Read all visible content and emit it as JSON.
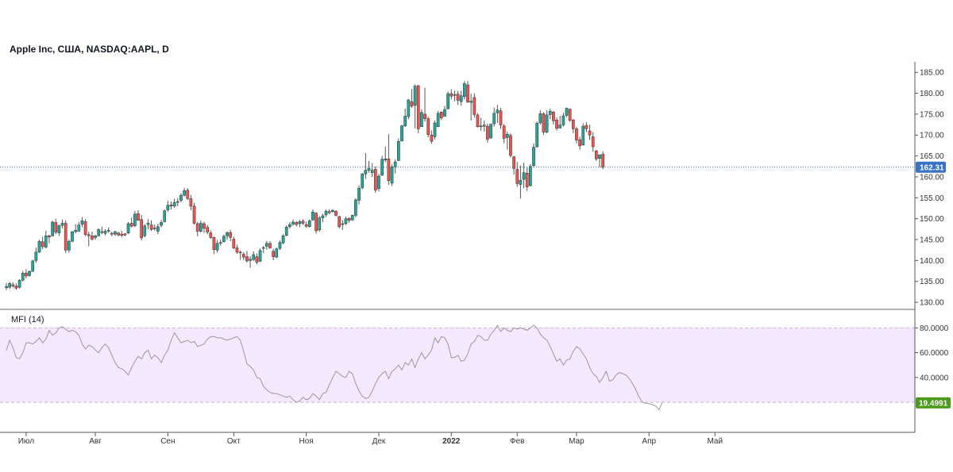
{
  "header": {
    "title": "Apple Inc, США, NASDAQ:AAPL, D"
  },
  "mfi": {
    "title": "MFI (14)",
    "last_value_label": "19.4991"
  },
  "colors": {
    "up": "#26a69a",
    "down": "#ef5350",
    "wick": "#555555",
    "price_line": "#2d6b8a",
    "price_badge": "#3b73c4",
    "mfi_line": "#999999",
    "mfi_band": "#f3e8fd",
    "mfi_band_border": "#c9b4d4",
    "mfi_badge": "#4a9a1c"
  },
  "chart_data": [
    {
      "type": "candlestick",
      "title": "Apple Inc, США, NASDAQ:AAPL, D",
      "x_labels": [
        "Июл",
        "Авг",
        "Сен",
        "Окт",
        "Ноя",
        "Дек",
        "2022",
        "Фев",
        "Мар",
        "Апр",
        "Май"
      ],
      "y_ticks": [
        "130.00",
        "135.00",
        "140.00",
        "145.00",
        "150.00",
        "155.00",
        "160.00",
        "165.00",
        "170.00",
        "175.00",
        "180.00",
        "185.00"
      ],
      "ylim": [
        128.5,
        187.5
      ],
      "last_price": 162.31,
      "last_price_label": "162.31",
      "grid": false,
      "candles": [
        [
          133.5,
          134.6,
          132.9,
          133.8
        ],
        [
          133.6,
          134.9,
          133.2,
          134.5
        ],
        [
          134.2,
          134.8,
          133.5,
          133.9
        ],
        [
          133.9,
          134.5,
          133.0,
          133.4
        ],
        [
          133.6,
          135.5,
          133.3,
          135.3
        ],
        [
          135.3,
          137.5,
          135.0,
          137.0
        ],
        [
          137.0,
          137.9,
          135.7,
          136.3
        ],
        [
          136.4,
          137.6,
          136.1,
          137.4
        ],
        [
          137.4,
          140.2,
          137.3,
          139.9
        ],
        [
          140.0,
          143.1,
          139.4,
          142.0
        ],
        [
          142.0,
          144.9,
          141.8,
          144.6
        ],
        [
          144.5,
          145.7,
          142.7,
          143.3
        ],
        [
          143.2,
          147.1,
          142.9,
          145.9
        ],
        [
          145.9,
          146.2,
          144.1,
          145.6
        ],
        [
          145.9,
          149.5,
          145.7,
          149.2
        ],
        [
          149.1,
          150.0,
          146.3,
          146.8
        ],
        [
          146.6,
          148.5,
          145.9,
          148.4
        ],
        [
          148.4,
          149.8,
          147.7,
          148.9
        ],
        [
          148.9,
          149.6,
          141.8,
          142.5
        ],
        [
          142.5,
          145.0,
          141.9,
          144.6
        ],
        [
          144.6,
          147.0,
          144.4,
          146.9
        ],
        [
          146.9,
          148.7,
          146.5,
          147.2
        ],
        [
          147.0,
          149.2,
          146.8,
          148.5
        ],
        [
          148.7,
          150.4,
          148.0,
          149.5
        ],
        [
          149.3,
          149.9,
          145.8,
          146.2
        ],
        [
          146.2,
          146.9,
          143.4,
          145.9
        ],
        [
          145.9,
          146.9,
          144.8,
          145.1
        ],
        [
          145.5,
          146.1,
          145.0,
          145.9
        ],
        [
          145.9,
          147.7,
          145.8,
          147.4
        ],
        [
          146.9,
          148.1,
          146.3,
          146.7
        ],
        [
          146.5,
          147.5,
          146.0,
          147.0
        ],
        [
          147.1,
          147.9,
          146.6,
          147.2
        ],
        [
          146.5,
          146.9,
          145.8,
          146.3
        ],
        [
          146.3,
          147.1,
          145.9,
          146.9
        ],
        [
          146.6,
          146.8,
          145.8,
          146.1
        ],
        [
          146.3,
          147.1,
          145.6,
          146.0
        ],
        [
          146.4,
          146.5,
          145.8,
          146.1
        ],
        [
          146.6,
          149.2,
          146.3,
          148.8
        ],
        [
          148.9,
          150.3,
          147.9,
          148.2
        ],
        [
          148.3,
          151.8,
          148.0,
          151.1
        ],
        [
          151.2,
          152.0,
          149.5,
          149.6
        ],
        [
          149.8,
          150.9,
          144.8,
          145.4
        ],
        [
          145.9,
          148.7,
          145.6,
          148.3
        ],
        [
          148.6,
          149.9,
          147.5,
          148.9
        ],
        [
          148.5,
          149.6,
          147.1,
          147.4
        ],
        [
          147.8,
          148.6,
          147.1,
          147.6
        ],
        [
          147.0,
          148.8,
          146.3,
          148.1
        ],
        [
          148.4,
          149.7,
          147.9,
          149.1
        ],
        [
          149.3,
          152.2,
          149.1,
          151.9
        ],
        [
          152.1,
          154.3,
          151.7,
          153.2
        ],
        [
          153.3,
          154.1,
          152.2,
          153.0
        ],
        [
          153.0,
          154.8,
          152.6,
          153.9
        ],
        [
          153.9,
          154.9,
          153.0,
          154.1
        ],
        [
          154.4,
          156.1,
          153.9,
          155.6
        ],
        [
          155.6,
          157.4,
          155.3,
          156.7
        ],
        [
          156.8,
          157.3,
          154.5,
          154.8
        ],
        [
          154.8,
          155.7,
          152.0,
          153.0
        ],
        [
          153.0,
          153.8,
          148.6,
          148.9
        ],
        [
          148.8,
          149.2,
          145.8,
          147.0
        ],
        [
          147.0,
          149.6,
          146.7,
          148.9
        ],
        [
          148.8,
          149.3,
          146.6,
          147.7
        ],
        [
          147.9,
          148.5,
          146.3,
          146.8
        ],
        [
          146.6,
          147.2,
          145.2,
          145.5
        ],
        [
          145.5,
          145.7,
          141.5,
          142.6
        ],
        [
          142.5,
          144.9,
          141.9,
          144.1
        ],
        [
          144.2,
          145.1,
          143.5,
          144.3
        ],
        [
          144.5,
          146.2,
          144.3,
          145.8
        ],
        [
          145.9,
          146.9,
          144.9,
          146.7
        ],
        [
          146.7,
          147.3,
          144.6,
          145.5
        ],
        [
          145.1,
          145.7,
          142.7,
          143.0
        ],
        [
          143.0,
          143.8,
          141.6,
          142.0
        ],
        [
          142.0,
          142.4,
          140.2,
          141.8
        ],
        [
          141.5,
          142.0,
          140.1,
          140.8
        ],
        [
          140.9,
          142.3,
          139.5,
          139.9
        ],
        [
          140.0,
          141.0,
          138.3,
          140.3
        ],
        [
          140.2,
          142.2,
          139.9,
          141.4
        ],
        [
          140.9,
          141.7,
          139.1,
          139.6
        ],
        [
          139.8,
          142.9,
          139.7,
          142.4
        ],
        [
          142.9,
          143.5,
          141.8,
          143.1
        ],
        [
          143.4,
          144.7,
          142.6,
          144.1
        ],
        [
          144.1,
          144.6,
          142.8,
          143.0
        ],
        [
          142.2,
          142.8,
          140.1,
          140.9
        ],
        [
          140.8,
          143.1,
          140.6,
          142.8
        ],
        [
          142.9,
          144.8,
          142.5,
          144.3
        ],
        [
          144.2,
          146.3,
          143.9,
          145.9
        ],
        [
          146.0,
          148.4,
          145.8,
          148.0
        ],
        [
          148.1,
          149.2,
          147.6,
          148.6
        ],
        [
          148.7,
          149.8,
          148.3,
          149.2
        ],
        [
          149.1,
          149.4,
          148.1,
          148.6
        ],
        [
          148.8,
          149.7,
          148.0,
          149.3
        ],
        [
          149.4,
          149.9,
          148.5,
          148.9
        ],
        [
          148.6,
          149.3,
          147.8,
          148.2
        ],
        [
          148.1,
          149.8,
          147.9,
          149.5
        ],
        [
          149.7,
          152.2,
          149.5,
          151.6
        ],
        [
          151.3,
          151.6,
          146.4,
          147.1
        ],
        [
          147.3,
          150.6,
          146.9,
          150.2
        ],
        [
          150.2,
          151.2,
          149.1,
          150.7
        ],
        [
          150.9,
          152.2,
          150.4,
          151.8
        ],
        [
          151.7,
          152.3,
          151.0,
          151.4
        ],
        [
          151.7,
          152.3,
          151.4,
          152.0
        ],
        [
          151.8,
          152.0,
          150.5,
          150.8
        ],
        [
          150.5,
          150.7,
          147.7,
          148.1
        ],
        [
          148.6,
          149.7,
          147.3,
          148.8
        ],
        [
          148.8,
          150.5,
          148.5,
          150.0
        ],
        [
          150.1,
          150.3,
          149.0,
          149.6
        ],
        [
          149.7,
          151.0,
          149.5,
          150.8
        ],
        [
          150.8,
          154.9,
          150.3,
          154.5
        ],
        [
          154.4,
          158.0,
          153.4,
          157.3
        ],
        [
          157.4,
          160.9,
          157.0,
          160.7
        ],
        [
          160.7,
          165.7,
          159.5,
          161.6
        ],
        [
          161.6,
          163.8,
          161.0,
          162.0
        ],
        [
          161.0,
          163.3,
          160.0,
          161.6
        ],
        [
          161.8,
          162.5,
          156.2,
          156.8
        ],
        [
          157.2,
          160.7,
          156.5,
          160.2
        ],
        [
          160.4,
          165.0,
          160.2,
          164.2
        ],
        [
          164.0,
          167.2,
          163.5,
          164.3
        ],
        [
          164.3,
          170.2,
          158.1,
          159.1
        ],
        [
          158.5,
          163.0,
          157.8,
          162.4
        ],
        [
          162.4,
          164.2,
          160.8,
          163.6
        ],
        [
          163.9,
          169.2,
          163.8,
          168.5
        ],
        [
          168.6,
          172.5,
          168.4,
          172.2
        ],
        [
          172.2,
          176.3,
          171.9,
          174.5
        ],
        [
          174.4,
          178.6,
          173.8,
          178.4
        ],
        [
          178.0,
          181.0,
          176.5,
          176.9
        ],
        [
          177.1,
          182.1,
          171.6,
          181.7
        ],
        [
          181.8,
          182.0,
          170.4,
          171.5
        ],
        [
          172.0,
          176.1,
          171.9,
          175.4
        ],
        [
          175.0,
          181.3,
          173.2,
          173.9
        ],
        [
          173.9,
          174.4,
          169.5,
          170.1
        ],
        [
          170.0,
          171.1,
          167.9,
          168.5
        ],
        [
          169.6,
          173.5,
          169.0,
          172.9
        ],
        [
          172.0,
          175.8,
          171.9,
          175.2
        ],
        [
          175.5,
          175.7,
          173.6,
          174.1
        ],
        [
          174.5,
          177.0,
          174.4,
          176.1
        ],
        [
          176.3,
          180.4,
          176.1,
          179.9
        ],
        [
          179.9,
          181.0,
          178.5,
          179.3
        ],
        [
          179.5,
          180.6,
          178.1,
          179.7
        ],
        [
          179.8,
          180.5,
          177.2,
          178.3
        ],
        [
          178.0,
          180.6,
          177.0,
          179.4
        ],
        [
          179.2,
          182.9,
          178.5,
          182.3
        ],
        [
          182.0,
          182.9,
          177.7,
          177.9
        ],
        [
          177.8,
          179.9,
          173.5,
          178.1
        ],
        [
          179.0,
          180.0,
          174.2,
          174.9
        ],
        [
          174.8,
          175.2,
          171.8,
          172.0
        ],
        [
          172.0,
          174.1,
          171.0,
          172.2
        ],
        [
          172.4,
          173.5,
          170.8,
          172.1
        ],
        [
          172.1,
          172.7,
          168.2,
          169.0
        ],
        [
          169.3,
          172.8,
          169.1,
          172.6
        ],
        [
          172.7,
          176.6,
          172.0,
          175.2
        ],
        [
          175.3,
          177.2,
          172.9,
          176.0
        ],
        [
          175.8,
          176.5,
          171.5,
          172.4
        ],
        [
          172.2,
          172.6,
          168.0,
          169.2
        ],
        [
          169.4,
          170.8,
          166.5,
          170.2
        ],
        [
          169.9,
          170.4,
          164.6,
          165.1
        ],
        [
          164.8,
          165.0,
          160.5,
          162.0
        ],
        [
          161.8,
          163.6,
          157.6,
          158.4
        ],
        [
          158.2,
          162.7,
          154.8,
          159.2
        ],
        [
          159.4,
          163.4,
          157.3,
          161.0
        ],
        [
          160.9,
          162.3,
          156.6,
          157.6
        ],
        [
          157.9,
          163.1,
          157.7,
          162.5
        ],
        [
          162.7,
          168.0,
          162.3,
          167.1
        ],
        [
          167.2,
          173.2,
          167.0,
          172.8
        ],
        [
          172.9,
          175.9,
          172.5,
          175.1
        ],
        [
          175.1,
          175.4,
          170.0,
          170.7
        ],
        [
          170.7,
          175.9,
          170.4,
          174.8
        ],
        [
          174.9,
          176.3,
          173.8,
          175.7
        ],
        [
          175.5,
          175.8,
          172.5,
          173.4
        ],
        [
          173.6,
          174.2,
          171.1,
          171.6
        ],
        [
          171.7,
          174.6,
          171.5,
          172.4
        ],
        [
          172.4,
          175.4,
          172.0,
          174.6
        ],
        [
          174.7,
          176.6,
          174.3,
          176.4
        ],
        [
          176.2,
          176.3,
          173.2,
          173.5
        ],
        [
          173.6,
          173.9,
          170.5,
          171.5
        ],
        [
          171.5,
          172.0,
          168.0,
          168.8
        ],
        [
          168.9,
          169.6,
          166.5,
          167.4
        ],
        [
          167.6,
          172.8,
          167.5,
          172.1
        ],
        [
          172.3,
          173.1,
          170.7,
          171.5
        ],
        [
          171.0,
          172.5,
          168.8,
          170.0
        ],
        [
          169.6,
          170.7,
          166.0,
          167.2
        ],
        [
          166.2,
          166.5,
          163.8,
          164.3
        ],
        [
          164.4,
          165.0,
          162.3,
          165.3
        ],
        [
          165.4,
          166.1,
          161.8,
          162.3
        ]
      ]
    },
    {
      "type": "line",
      "title": "MFI (14)",
      "y_ticks": [
        "40.0000",
        "60.0000",
        "80.0000"
      ],
      "ylim": [
        -3,
        93
      ],
      "band": [
        20,
        80
      ],
      "last_value": 19.4991,
      "values": [
        62,
        70,
        64,
        56,
        55,
        60,
        68,
        68,
        67,
        69,
        72,
        68,
        71,
        78,
        74,
        76,
        80,
        81,
        79,
        77,
        78,
        77,
        74,
        67,
        63,
        66,
        65,
        62,
        60,
        64,
        67,
        64,
        58,
        52,
        48,
        47,
        45,
        42,
        48,
        53,
        57,
        55,
        60,
        62,
        55,
        58,
        56,
        52,
        58,
        62,
        70,
        76,
        72,
        68,
        69,
        70,
        68,
        69,
        65,
        66,
        67,
        71,
        73,
        73,
        72,
        72,
        71,
        70,
        71,
        72,
        73,
        70,
        61,
        51,
        49,
        46,
        40,
        39,
        33,
        30,
        28,
        27,
        27,
        26,
        25,
        24,
        25,
        22,
        20,
        21,
        24,
        22,
        23,
        27,
        25,
        22,
        27,
        28,
        34,
        40,
        45,
        43,
        41,
        40,
        45,
        43,
        35,
        29,
        25,
        23,
        24,
        29,
        35,
        40,
        43,
        45,
        39,
        45,
        47,
        50,
        46,
        52,
        50,
        55,
        48,
        55,
        60,
        55,
        58,
        62,
        72,
        68,
        73,
        72,
        67,
        56,
        56,
        58,
        53,
        54,
        59,
        67,
        69,
        74,
        73,
        70,
        70,
        75,
        78,
        82,
        77,
        80,
        78,
        77,
        80,
        79,
        80,
        79,
        78,
        80,
        82,
        80,
        75,
        72,
        70,
        65,
        59,
        53,
        55,
        50,
        54,
        55,
        61,
        65,
        63,
        59,
        55,
        48,
        43,
        41,
        36,
        40,
        45,
        37,
        38,
        42,
        44,
        43,
        42,
        39,
        35,
        30,
        24,
        20,
        19,
        19,
        18,
        17,
        14,
        20
      ]
    }
  ]
}
